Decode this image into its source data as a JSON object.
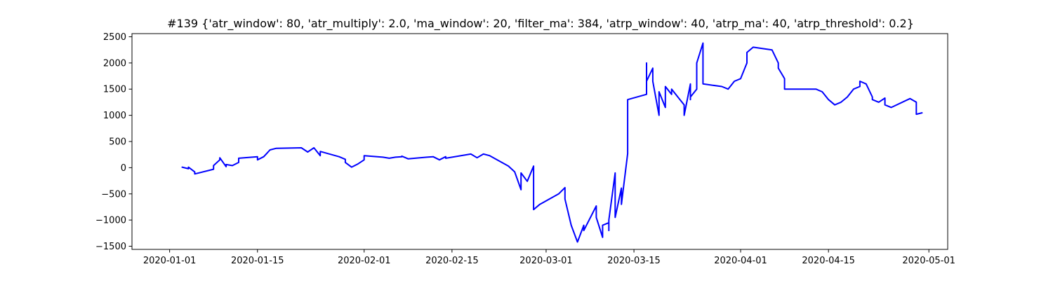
{
  "chart_data": {
    "type": "line",
    "title": "#139 {'atr_window': 80, 'atr_multiply': 2.0, 'ma_window': 20, 'filter_ma': 384, 'atrp_window': 40, 'atrp_ma': 40, 'atrp_threshold': 0.2}",
    "xlabel": "",
    "ylabel": "",
    "grid": false,
    "legend": "none",
    "line_color": "#0000ff",
    "x_axis": {
      "type": "date",
      "range": [
        "2019-12-26",
        "2020-05-04"
      ],
      "ticks": [
        "2020-01-01",
        "2020-01-15",
        "2020-02-01",
        "2020-02-15",
        "2020-03-01",
        "2020-03-15",
        "2020-04-01",
        "2020-04-15",
        "2020-05-01"
      ]
    },
    "y_axis": {
      "range": [
        -1560,
        2560
      ],
      "ticks": [
        -1500,
        -1000,
        -500,
        0,
        500,
        1000,
        1500,
        2000,
        2500
      ],
      "tick_labels": [
        "−1500",
        "−1000",
        "−500",
        "0",
        "500",
        "1000",
        "1500",
        "2000",
        "2500"
      ]
    },
    "series": [
      {
        "x": [
          "2020-01-03",
          "2020-01-03",
          "2020-01-04",
          "2020-01-04",
          "2020-01-05",
          "2020-01-05",
          "2020-01-08",
          "2020-01-08",
          "2020-01-09",
          "2020-01-09",
          "2020-01-10",
          "2020-01-10",
          "2020-01-11",
          "2020-01-12",
          "2020-01-12",
          "2020-01-15",
          "2020-01-15",
          "2020-01-16",
          "2020-01-17",
          "2020-01-18",
          "2020-01-18",
          "2020-01-22",
          "2020-01-23",
          "2020-01-24",
          "2020-01-25",
          "2020-01-25",
          "2020-01-28",
          "2020-01-29",
          "2020-01-29",
          "2020-01-30",
          "2020-01-31",
          "2020-02-01",
          "2020-02-01",
          "2020-02-04",
          "2020-02-05",
          "2020-02-06",
          "2020-02-07",
          "2020-02-07",
          "2020-02-08",
          "2020-02-11",
          "2020-02-12",
          "2020-02-13",
          "2020-02-14",
          "2020-02-14",
          "2020-02-18",
          "2020-02-19",
          "2020-02-20",
          "2020-02-21",
          "2020-02-24",
          "2020-02-25",
          "2020-02-26",
          "2020-02-26",
          "2020-02-27",
          "2020-02-28",
          "2020-02-28",
          "2020-02-29",
          "2020-03-03",
          "2020-03-03",
          "2020-03-04",
          "2020-03-04",
          "2020-03-05",
          "2020-03-06",
          "2020-03-07",
          "2020-03-07",
          "2020-03-09",
          "2020-03-09",
          "2020-03-10",
          "2020-03-10",
          "2020-03-11",
          "2020-03-11",
          "2020-03-11",
          "2020-03-12",
          "2020-03-12",
          "2020-03-13",
          "2020-03-13",
          "2020-03-14",
          "2020-03-14",
          "2020-03-17",
          "2020-03-17",
          "2020-03-17",
          "2020-03-18",
          "2020-03-18",
          "2020-03-19",
          "2020-03-19",
          "2020-03-20",
          "2020-03-20",
          "2020-03-21",
          "2020-03-21",
          "2020-03-22",
          "2020-03-23",
          "2020-03-23",
          "2020-03-24",
          "2020-03-24",
          "2020-03-24",
          "2020-03-25",
          "2020-03-25",
          "2020-03-25",
          "2020-03-26",
          "2020-03-26",
          "2020-03-26",
          "2020-03-26",
          "2020-03-29",
          "2020-03-30",
          "2020-03-31",
          "2020-04-01",
          "2020-04-02",
          "2020-04-02",
          "2020-04-03",
          "2020-04-03",
          "2020-04-06",
          "2020-04-07",
          "2020-04-07",
          "2020-04-08",
          "2020-04-08",
          "2020-04-09",
          "2020-04-13",
          "2020-04-14",
          "2020-04-15",
          "2020-04-16",
          "2020-04-17",
          "2020-04-18",
          "2020-04-19",
          "2020-04-20",
          "2020-04-20",
          "2020-04-21",
          "2020-04-22",
          "2020-04-22",
          "2020-04-23",
          "2020-04-24",
          "2020-04-24",
          "2020-04-25",
          "2020-04-28",
          "2020-04-29",
          "2020-04-29",
          "2020-04-30"
        ],
        "y": [
          0,
          10,
          -20,
          10,
          -80,
          -120,
          -30,
          40,
          150,
          190,
          20,
          60,
          40,
          100,
          180,
          210,
          150,
          210,
          340,
          370,
          370,
          380,
          300,
          380,
          230,
          310,
          210,
          160,
          100,
          10,
          70,
          150,
          230,
          200,
          180,
          200,
          210,
          220,
          170,
          200,
          210,
          150,
          210,
          180,
          260,
          190,
          260,
          230,
          30,
          -80,
          -420,
          -100,
          -260,
          30,
          -800,
          -700,
          -500,
          -500,
          -380,
          -600,
          -1100,
          -1420,
          -1100,
          -1200,
          -730,
          -950,
          -1330,
          -1100,
          -1050,
          -1200,
          -1000,
          -100,
          -950,
          -390,
          -700,
          270,
          1300,
          1400,
          2000,
          1650,
          1900,
          1650,
          1000,
          1450,
          1150,
          1550,
          1400,
          1500,
          1350,
          1200,
          1000,
          1600,
          1300,
          1350,
          1500,
          1900,
          2000,
          2380,
          2300,
          2000,
          1600,
          1550,
          1500,
          1650,
          1700,
          2000,
          2200,
          2300,
          2300,
          2250,
          2000,
          1900,
          1700,
          1500,
          1500,
          1500,
          1450,
          1300,
          1200,
          1250,
          1350,
          1500,
          1550,
          1650,
          1600,
          1350,
          1300,
          1250,
          1330,
          1200,
          1150,
          1320,
          1250,
          1020,
          1050
        ]
      }
    ]
  }
}
